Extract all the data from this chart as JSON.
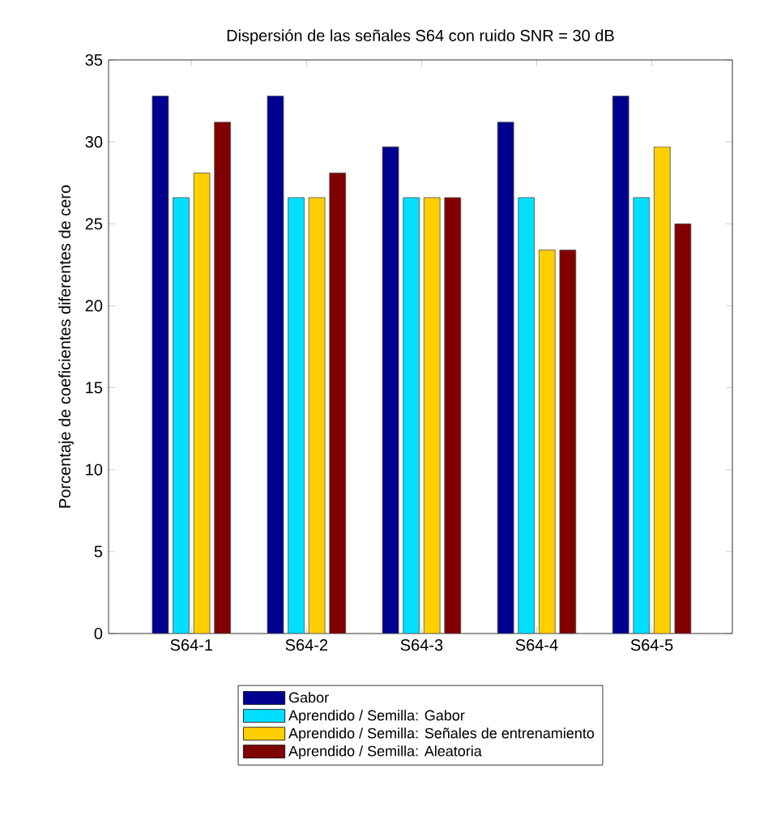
{
  "chart_data": {
    "type": "bar",
    "title": "Dispersión de las señales S64 con ruido SNR = 30 dB",
    "ylabel": "Porcentaje de coeficientes diferentes de cero",
    "categories": [
      "S64-1",
      "S64-2",
      "S64-3",
      "S64-4",
      "S64-5"
    ],
    "series": [
      {
        "name": "Gabor",
        "color": "#00008f",
        "values": [
          32.8,
          32.8,
          29.7,
          31.2,
          32.8
        ]
      },
      {
        "name": "Aprendido / Semilla: Gabor",
        "color": "#00dfff",
        "values": [
          26.6,
          26.6,
          26.6,
          26.6,
          26.6
        ]
      },
      {
        "name": "Aprendido / Semilla: Señales de entrenamiento",
        "color": "#ffcf00",
        "values": [
          28.1,
          26.6,
          26.6,
          23.4,
          29.7
        ]
      },
      {
        "name": "Aprendido / Semilla: Aleatoria",
        "color": "#800000",
        "values": [
          31.2,
          28.1,
          26.6,
          23.4,
          25
        ]
      }
    ],
    "ylim": [
      0,
      35
    ],
    "yticks": [
      0,
      5,
      10,
      15,
      20,
      25,
      30,
      35
    ],
    "grid": false,
    "legend": "bottom"
  }
}
